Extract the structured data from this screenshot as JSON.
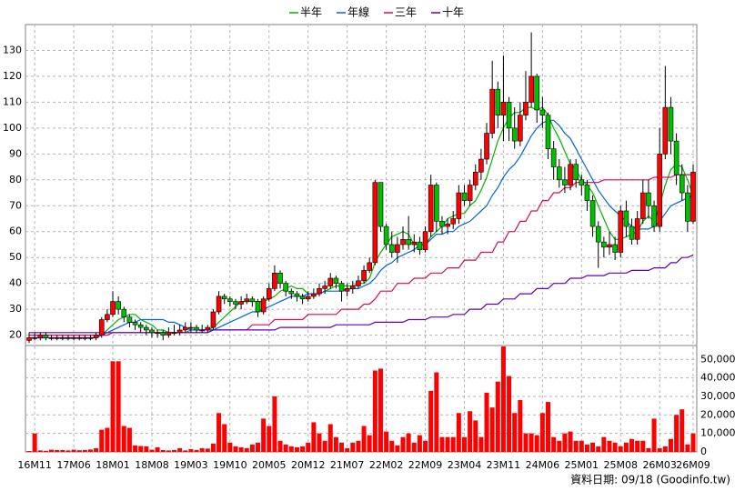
{
  "chart_data": {
    "type": "candlestick",
    "categories": [
      null,
      "16M11",
      null,
      null,
      null,
      null,
      null,
      null,
      "17M06",
      null,
      null,
      null,
      null,
      null,
      null,
      "18M01",
      null,
      null,
      null,
      null,
      null,
      null,
      "18M08",
      null,
      null,
      null,
      null,
      null,
      null,
      "19M03",
      null,
      null,
      null,
      null,
      null,
      null,
      "19M10",
      null,
      null,
      null,
      null,
      null,
      null,
      "20M05",
      null,
      null,
      null,
      null,
      null,
      null,
      "20M12",
      null,
      null,
      null,
      null,
      null,
      null,
      "21M07",
      null,
      null,
      null,
      null,
      null,
      null,
      "22M02",
      null,
      null,
      null,
      null,
      null,
      null,
      "22M09",
      null,
      null,
      null,
      null,
      null,
      null,
      "23M04",
      null,
      null,
      null,
      null,
      null,
      null,
      "23M11",
      null,
      null,
      null,
      null,
      null,
      null,
      "24M06",
      null,
      null,
      null,
      null,
      null,
      null,
      "25M01",
      null,
      null,
      null,
      null,
      null,
      null,
      "25M08",
      null,
      null,
      null,
      null,
      null,
      null,
      "26M03",
      null,
      null,
      null,
      null,
      null,
      "26M09"
    ],
    "open": [
      18,
      19,
      19,
      20,
      19,
      19,
      19,
      19,
      19,
      19,
      19,
      19,
      19,
      20,
      26,
      28,
      33,
      30,
      27,
      25,
      24,
      23,
      22,
      21,
      21,
      20,
      21,
      21,
      22,
      23,
      23,
      22,
      22,
      23,
      29,
      35,
      34,
      33,
      32,
      33,
      34,
      33,
      29,
      34,
      38,
      44,
      40,
      37,
      36,
      35,
      34,
      35,
      36,
      38,
      39,
      42,
      40,
      37,
      38,
      39,
      41,
      45,
      48,
      79,
      62,
      55,
      52,
      55,
      57,
      55,
      56,
      53,
      60,
      78,
      64,
      62,
      63,
      65,
      75,
      72,
      78,
      83,
      88,
      98,
      115,
      105,
      110,
      100,
      95,
      105,
      110,
      120,
      107,
      105,
      92,
      85,
      80,
      78,
      86,
      80,
      78,
      72,
      62,
      56,
      54,
      55,
      52,
      68,
      62,
      57,
      65,
      75,
      70,
      62,
      90,
      108,
      95,
      82,
      75,
      64
    ],
    "high": [
      21,
      21,
      21,
      21,
      20,
      20,
      20,
      20,
      20,
      20,
      20,
      20,
      21,
      27,
      30,
      37,
      35,
      31,
      28,
      26,
      25,
      24,
      23,
      22,
      22,
      23,
      24,
      24,
      25,
      25,
      24,
      24,
      24,
      30,
      37,
      36,
      35,
      34,
      35,
      36,
      35,
      34,
      35,
      40,
      47,
      45,
      41,
      38,
      37,
      36,
      37,
      38,
      40,
      41,
      44,
      43,
      41,
      40,
      41,
      43,
      47,
      50,
      80,
      79,
      63,
      60,
      58,
      62,
      66,
      59,
      58,
      62,
      82,
      79,
      66,
      65,
      68,
      78,
      78,
      80,
      86,
      92,
      102,
      126,
      118,
      128,
      112,
      108,
      110,
      122,
      137,
      121,
      112,
      106,
      95,
      88,
      85,
      88,
      88,
      82,
      80,
      74,
      64,
      58,
      60,
      58,
      70,
      72,
      65,
      68,
      80,
      80,
      72,
      100,
      124,
      112,
      98,
      86,
      78,
      86
    ],
    "low": [
      17,
      18,
      18,
      18,
      18,
      18,
      18,
      18,
      18,
      18,
      18,
      18,
      18,
      19,
      25,
      27,
      28,
      25,
      23,
      22,
      21,
      20,
      19,
      19,
      18,
      19,
      20,
      20,
      21,
      21,
      21,
      21,
      21,
      22,
      28,
      32,
      31,
      30,
      30,
      32,
      31,
      27,
      28,
      33,
      37,
      38,
      35,
      34,
      33,
      32,
      33,
      34,
      35,
      36,
      38,
      38,
      33,
      35,
      36,
      38,
      40,
      44,
      47,
      60,
      53,
      50,
      48,
      53,
      53,
      52,
      51,
      52,
      58,
      60,
      59,
      59,
      61,
      63,
      70,
      70,
      76,
      80,
      86,
      96,
      100,
      95,
      95,
      92,
      93,
      103,
      108,
      102,
      100,
      88,
      80,
      77,
      75,
      76,
      77,
      74,
      68,
      58,
      46,
      50,
      51,
      49,
      50,
      58,
      55,
      55,
      63,
      65,
      60,
      60,
      88,
      90,
      78,
      72,
      60,
      63
    ],
    "close": [
      19,
      19,
      20,
      19,
      19,
      19,
      19,
      19,
      19,
      19,
      19,
      19,
      20,
      26,
      28,
      33,
      30,
      27,
      25,
      24,
      23,
      22,
      21,
      21,
      20,
      21,
      21,
      22,
      23,
      23,
      22,
      22,
      23,
      29,
      35,
      34,
      33,
      32,
      33,
      34,
      33,
      29,
      34,
      38,
      44,
      40,
      37,
      36,
      35,
      34,
      35,
      36,
      38,
      39,
      42,
      40,
      37,
      38,
      39,
      41,
      45,
      48,
      79,
      62,
      55,
      52,
      55,
      57,
      55,
      56,
      53,
      60,
      78,
      64,
      62,
      63,
      65,
      75,
      72,
      78,
      83,
      88,
      98,
      115,
      105,
      110,
      100,
      95,
      105,
      110,
      120,
      107,
      105,
      92,
      85,
      80,
      78,
      86,
      80,
      78,
      72,
      62,
      56,
      54,
      55,
      52,
      68,
      62,
      57,
      65,
      75,
      70,
      62,
      90,
      108,
      95,
      82,
      75,
      64,
      83
    ],
    "up_color": "#ff0000",
    "down_color": "#00c000",
    "series": [
      {
        "name": "半年",
        "color": "#00b400",
        "values": [
          19,
          19,
          19,
          19,
          19,
          19,
          19,
          19,
          19,
          19,
          19,
          19,
          19,
          20,
          22,
          24,
          26,
          27,
          28,
          28,
          26,
          25,
          24,
          22,
          22,
          21,
          21,
          21,
          21,
          22,
          22,
          22,
          22,
          23,
          25,
          27,
          29,
          31,
          33,
          33,
          33,
          33,
          33,
          34,
          35,
          37,
          38,
          39,
          38,
          38,
          36,
          36,
          36,
          37,
          38,
          39,
          39,
          39,
          39,
          40,
          40,
          42,
          48,
          52,
          55,
          58,
          59,
          60,
          59,
          55,
          55,
          55,
          58,
          60,
          62,
          65,
          66,
          67,
          67,
          70,
          72,
          76,
          81,
          88,
          95,
          100,
          104,
          106,
          106,
          108,
          108,
          107,
          108,
          105,
          100,
          96,
          91,
          86,
          84,
          80,
          78,
          75,
          70,
          65,
          60,
          57,
          57,
          58,
          59,
          60,
          64,
          66,
          64,
          70,
          78,
          84,
          86,
          85,
          80,
          74
        ]
      },
      {
        "name": "年線",
        "color": "#0064e6",
        "values": [
          19,
          19,
          19,
          19,
          19,
          19,
          19,
          19,
          19,
          19,
          19,
          19,
          19,
          20,
          21,
          22,
          23,
          24,
          25,
          25,
          26,
          26,
          26,
          26,
          26,
          25,
          25,
          24,
          23,
          22,
          22,
          22,
          22,
          22,
          23,
          24,
          25,
          26,
          27,
          28,
          29,
          29,
          30,
          31,
          32,
          33,
          34,
          35,
          35,
          35,
          36,
          36,
          36,
          37,
          37,
          37,
          37,
          38,
          38,
          38,
          39,
          40,
          42,
          45,
          47,
          48,
          50,
          51,
          52,
          53,
          55,
          55,
          57,
          59,
          59,
          60,
          60,
          62,
          63,
          64,
          66,
          68,
          70,
          74,
          77,
          81,
          84,
          86,
          89,
          93,
          97,
          100,
          102,
          103,
          103,
          101,
          98,
          96,
          92,
          88,
          84,
          80,
          76,
          73,
          70,
          68,
          66,
          64,
          62,
          61,
          61,
          61,
          62,
          64,
          67,
          70,
          71,
          72,
          73,
          74
        ]
      },
      {
        "name": "三年",
        "color": "#dc0a5a",
        "values": [
          20,
          20,
          20,
          20,
          20,
          20,
          20,
          20,
          20,
          20,
          20,
          20,
          20,
          20,
          20,
          21,
          21,
          21,
          21,
          21,
          21,
          21,
          21,
          21,
          21,
          21,
          21,
          21,
          21,
          21,
          21,
          21,
          21,
          22,
          22,
          22,
          22,
          22,
          22,
          22,
          24,
          24,
          24,
          24,
          26,
          26,
          26,
          26,
          26,
          26,
          28,
          28,
          28,
          28,
          28,
          28,
          30,
          30,
          30,
          30,
          32,
          32,
          34,
          37,
          37,
          37,
          40,
          40,
          40,
          42,
          42,
          42,
          44,
          44,
          44,
          46,
          46,
          46,
          49,
          49,
          49,
          52,
          52,
          52,
          56,
          56,
          60,
          60,
          64,
          64,
          68,
          68,
          72,
          72,
          75,
          75,
          77,
          77,
          79,
          79,
          79,
          79,
          79,
          80,
          80,
          80,
          80,
          80,
          80,
          80,
          80,
          80,
          81,
          81,
          81,
          81,
          82,
          82,
          82,
          82
        ]
      },
      {
        "name": "十年",
        "color": "#6400b4",
        "values": [
          21,
          21,
          21,
          21,
          21,
          21,
          21,
          21,
          21,
          21,
          21,
          21,
          21,
          21,
          21,
          21,
          21,
          21,
          21,
          21,
          21,
          21,
          21,
          21,
          21,
          21,
          21,
          21,
          21,
          21,
          21,
          21,
          21,
          22,
          22,
          22,
          22,
          22,
          22,
          22,
          22,
          22,
          22,
          22,
          22,
          23,
          23,
          23,
          23,
          23,
          23,
          23,
          23,
          23,
          23,
          24,
          24,
          24,
          24,
          24,
          24,
          24,
          25,
          25,
          25,
          25,
          25,
          25,
          26,
          26,
          26,
          26,
          27,
          27,
          27,
          27,
          28,
          28,
          28,
          30,
          30,
          30,
          32,
          32,
          32,
          34,
          34,
          34,
          36,
          36,
          36,
          38,
          38,
          38,
          40,
          40,
          40,
          42,
          42,
          42,
          43,
          43,
          43,
          43,
          44,
          44,
          44,
          44,
          45,
          45,
          45,
          45,
          46,
          46,
          46,
          48,
          48,
          50,
          50,
          51
        ]
      }
    ],
    "ylim": [
      16,
      140
    ],
    "yticks": [
      20,
      30,
      40,
      50,
      60,
      70,
      80,
      90,
      100,
      110,
      120,
      130
    ],
    "grid": true,
    "legend": "top",
    "volume": {
      "color": "#ff0000",
      "values": [
        500,
        10000,
        800,
        600,
        1200,
        1000,
        1000,
        800,
        1200,
        900,
        1000,
        1300,
        2000,
        12000,
        13000,
        49000,
        49000,
        14000,
        13000,
        3500,
        3200,
        3000,
        1200,
        2500,
        1000,
        800,
        1000,
        2000,
        800,
        1500,
        1000,
        2000,
        1800,
        4500,
        21000,
        15000,
        5000,
        3000,
        2500,
        2000,
        4000,
        5000,
        18000,
        14000,
        30000,
        6000,
        4000,
        3000,
        2500,
        3000,
        5000,
        16000,
        10000,
        6000,
        15000,
        8000,
        5000,
        2000,
        5000,
        6000,
        14000,
        9000,
        44000,
        45000,
        11000,
        6000,
        3500,
        8000,
        10000,
        5000,
        9000,
        6000,
        33000,
        43000,
        8000,
        8000,
        8000,
        21000,
        8000,
        22000,
        17000,
        8000,
        32000,
        24000,
        38000,
        57000,
        41000,
        21000,
        28000,
        10000,
        10000,
        9000,
        21000,
        27000,
        8000,
        6000,
        10000,
        11000,
        6000,
        6000,
        4000,
        5000,
        3000,
        8000,
        6000,
        5000,
        3000,
        5000,
        7000,
        6000,
        6000,
        2000,
        18000,
        2000,
        3000,
        7000,
        20000,
        23000,
        4000,
        10000
      ],
      "ylim": [
        0,
        57500
      ],
      "yticks": [
        0,
        {
          "value": 10000,
          "label": "10,000"
        },
        {
          "value": 20000,
          "label": "20,000"
        },
        {
          "value": 30000,
          "label": "30,000"
        },
        {
          "value": 40000,
          "label": "40,000"
        },
        {
          "value": 50000,
          "label": "50,000"
        }
      ]
    },
    "footnote": "資料日期: 09/18 (Goodinfo.tw)"
  }
}
